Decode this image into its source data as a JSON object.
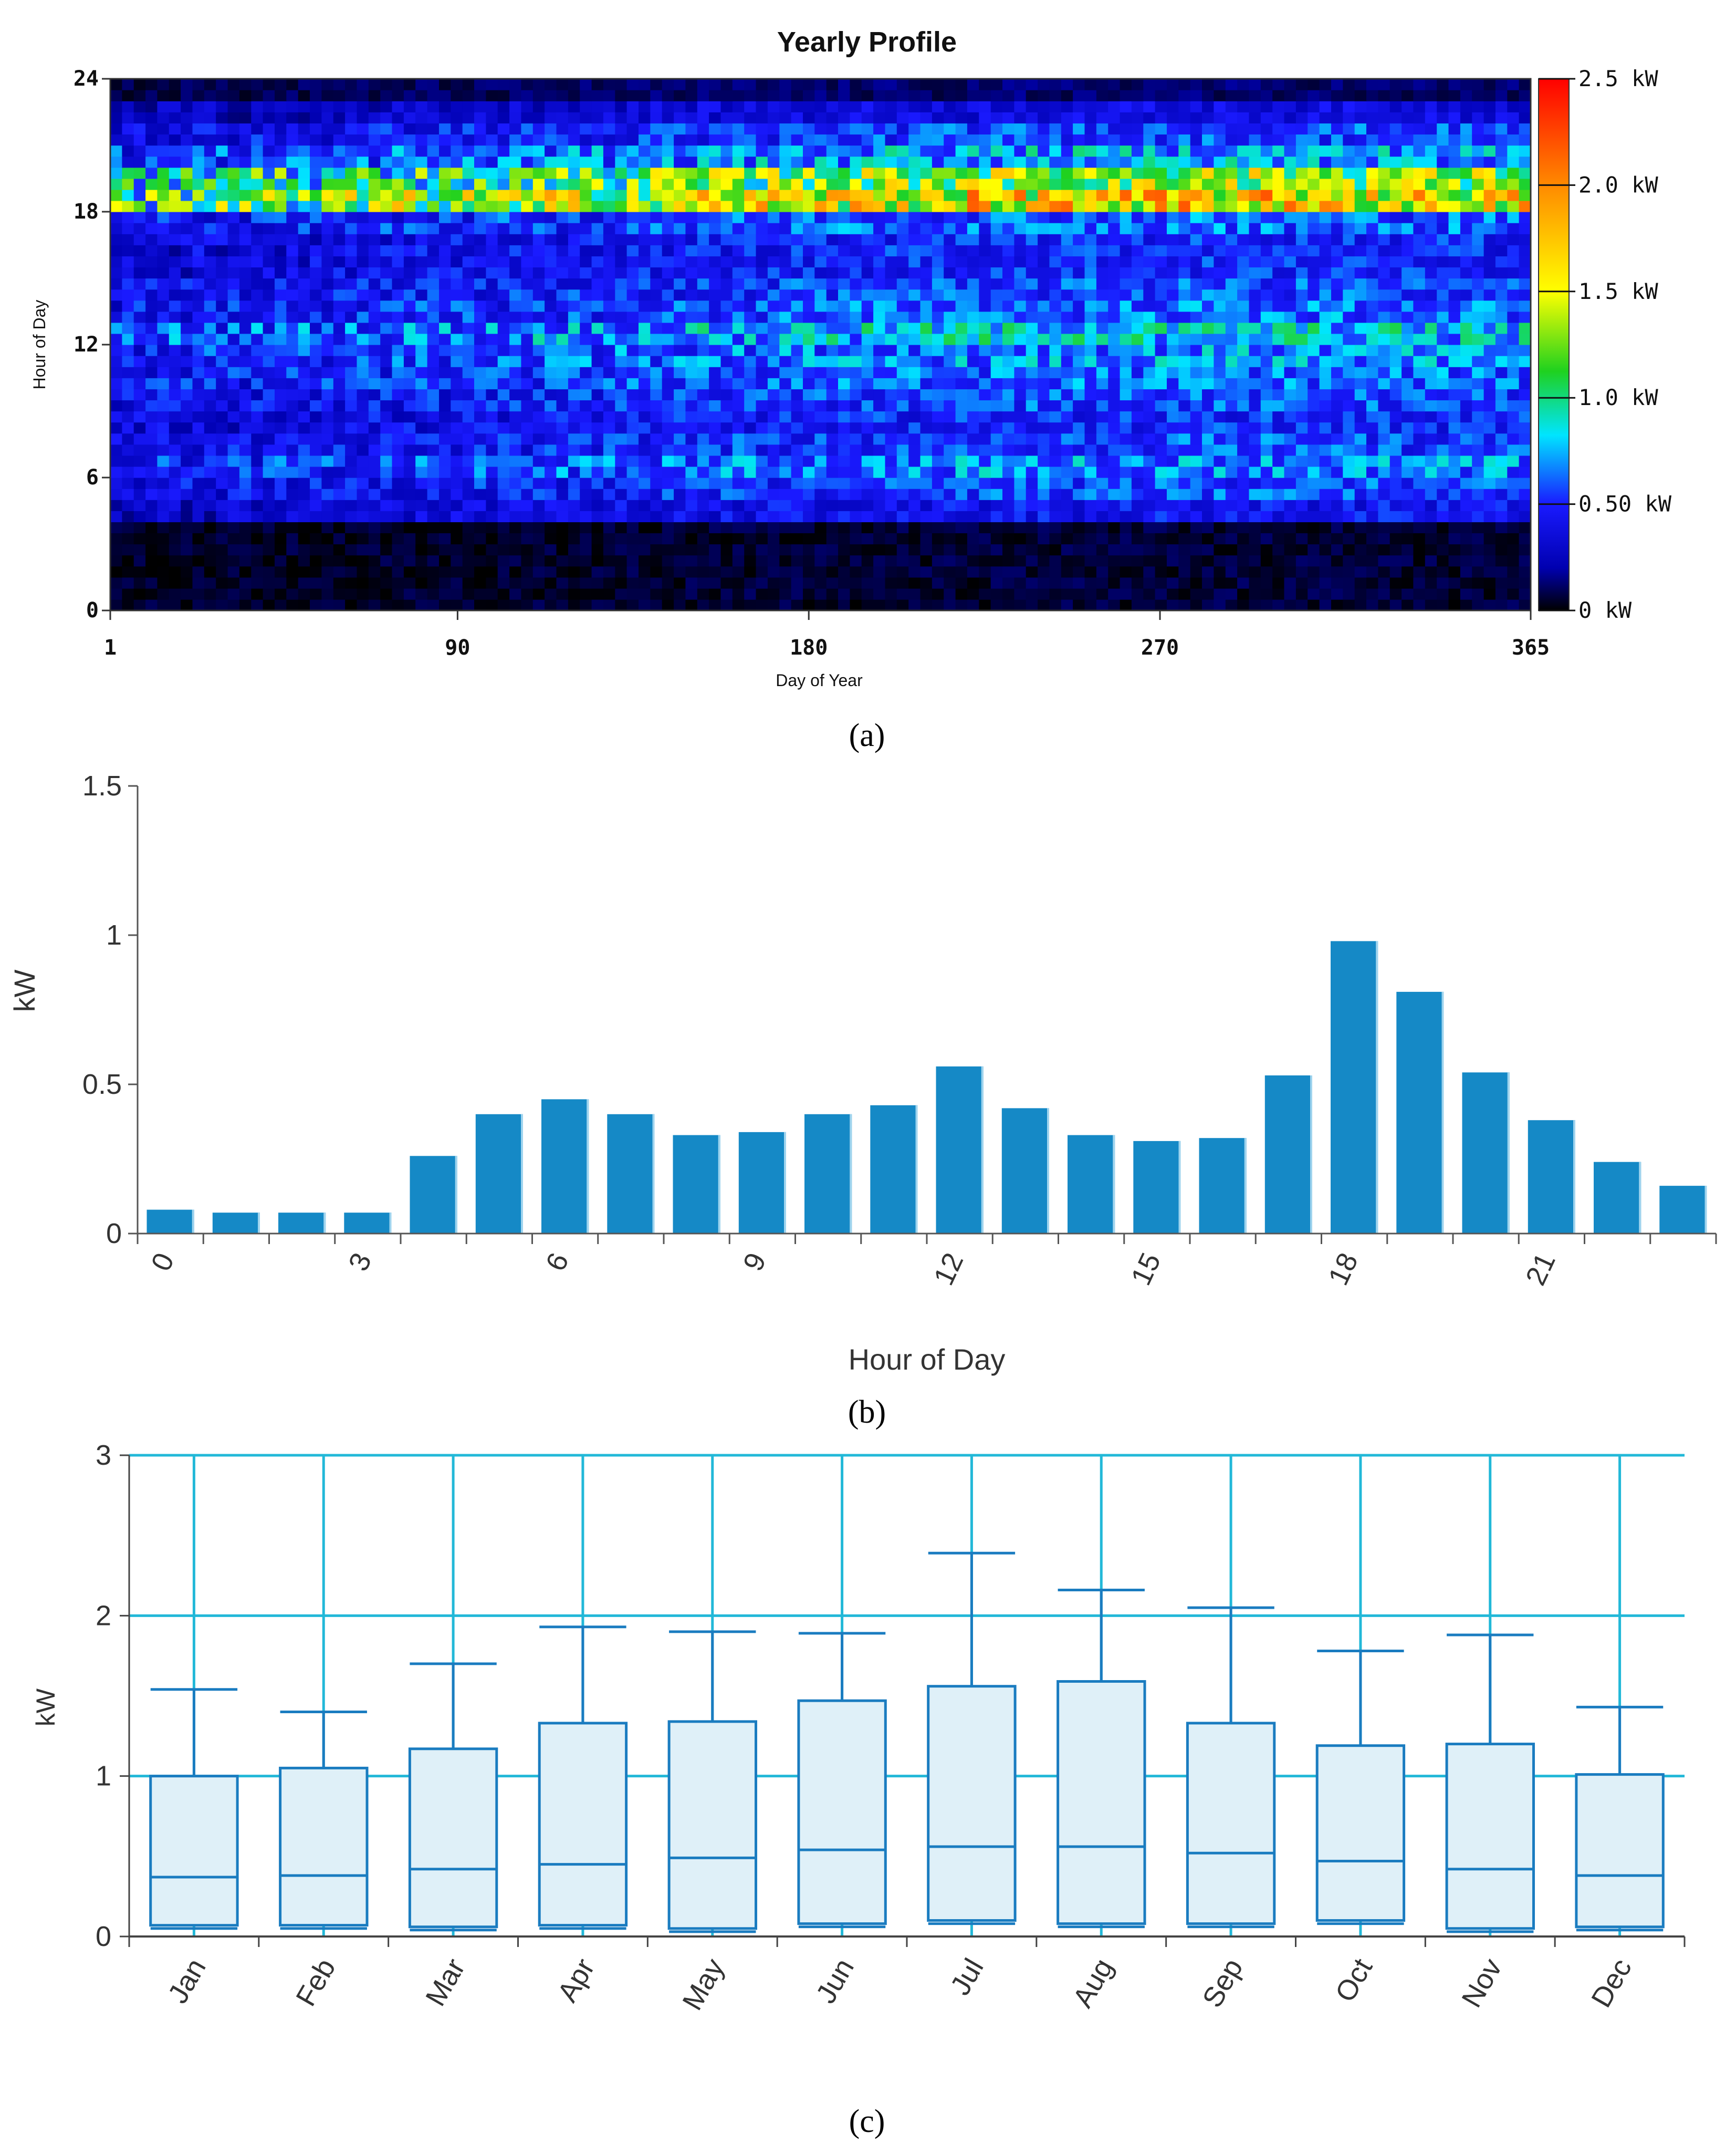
{
  "chart_data": [
    {
      "type": "heatmap",
      "title": "Yearly Profile",
      "xlabel": "Day of Year",
      "ylabel": "Hour of Day",
      "xlim": [
        1,
        365
      ],
      "ylim": [
        0,
        24
      ],
      "x_ticks": [
        "1",
        "90",
        "180",
        "270",
        "365"
      ],
      "y_ticks": [
        "0",
        "6",
        "12",
        "18",
        "24"
      ],
      "colorbar": {
        "range_kw": [
          0,
          2.5
        ],
        "tick_labels": [
          "0 kW",
          "0.50 kW",
          "1.0 kW",
          "1.5 kW",
          "2.0 kW",
          "2.5 kW"
        ],
        "colors": [
          "#000000",
          "#1a1aff",
          "#00e5ff",
          "#1fd11f",
          "#ffff00",
          "#ff8a00",
          "#ff0000"
        ]
      },
      "hourly_level_kw": [
        0.05,
        0.05,
        0.05,
        0.05,
        0.35,
        0.45,
        0.55,
        0.45,
        0.4,
        0.45,
        0.5,
        0.55,
        0.65,
        0.5,
        0.45,
        0.4,
        0.4,
        0.5,
        1.3,
        1.05,
        0.6,
        0.45,
        0.3,
        0.1
      ],
      "caption": "(a)"
    },
    {
      "type": "bar",
      "categories": [
        "0",
        "1",
        "2",
        "3",
        "4",
        "5",
        "6",
        "7",
        "8",
        "9",
        "10",
        "11",
        "12",
        "13",
        "14",
        "15",
        "16",
        "17",
        "18",
        "19",
        "20",
        "21",
        "22",
        "23"
      ],
      "values": [
        0.08,
        0.07,
        0.07,
        0.07,
        0.26,
        0.4,
        0.45,
        0.4,
        0.33,
        0.34,
        0.4,
        0.43,
        0.56,
        0.42,
        0.33,
        0.31,
        0.32,
        0.53,
        0.98,
        0.81,
        0.54,
        0.38,
        0.24,
        0.16
      ],
      "x_tick_labels": [
        "0",
        "3",
        "6",
        "9",
        "12",
        "15",
        "18",
        "21"
      ],
      "y_tick_labels": [
        "0",
        "0.5",
        "1",
        "1.5"
      ],
      "xlabel": "Hour of Day",
      "ylabel": "kW",
      "ylim": [
        0,
        1.5
      ],
      "bar_color": "#1589c6",
      "caption": "(b)"
    },
    {
      "type": "box",
      "categories": [
        "Jan",
        "Feb",
        "Mar",
        "Apr",
        "May",
        "Jun",
        "Jul",
        "Aug",
        "Sep",
        "Oct",
        "Nov",
        "Dec"
      ],
      "boxes": [
        {
          "min": 0.05,
          "q1": 0.07,
          "median": 0.37,
          "q3": 1.0,
          "max": 1.54
        },
        {
          "min": 0.05,
          "q1": 0.07,
          "median": 0.38,
          "q3": 1.05,
          "max": 1.4
        },
        {
          "min": 0.04,
          "q1": 0.06,
          "median": 0.42,
          "q3": 1.17,
          "max": 1.7
        },
        {
          "min": 0.05,
          "q1": 0.07,
          "median": 0.45,
          "q3": 1.33,
          "max": 1.93
        },
        {
          "min": 0.03,
          "q1": 0.05,
          "median": 0.49,
          "q3": 1.34,
          "max": 1.9
        },
        {
          "min": 0.06,
          "q1": 0.08,
          "median": 0.54,
          "q3": 1.47,
          "max": 1.89
        },
        {
          "min": 0.08,
          "q1": 0.1,
          "median": 0.56,
          "q3": 1.56,
          "max": 2.39
        },
        {
          "min": 0.06,
          "q1": 0.08,
          "median": 0.56,
          "q3": 1.59,
          "max": 2.16
        },
        {
          "min": 0.06,
          "q1": 0.08,
          "median": 0.52,
          "q3": 1.33,
          "max": 2.05
        },
        {
          "min": 0.08,
          "q1": 0.1,
          "median": 0.47,
          "q3": 1.19,
          "max": 1.78
        },
        {
          "min": 0.03,
          "q1": 0.05,
          "median": 0.42,
          "q3": 1.2,
          "max": 1.88
        },
        {
          "min": 0.04,
          "q1": 0.06,
          "median": 0.38,
          "q3": 1.01,
          "max": 1.43
        }
      ],
      "y_tick_labels": [
        "0",
        "1",
        "2",
        "3"
      ],
      "xlabel": "",
      "ylabel": "kW",
      "ylim": [
        0,
        3
      ],
      "box_fill": "#dff0f8",
      "box_stroke": "#1a7cc0",
      "grid_color": "#22b8d8",
      "caption": "(c)"
    }
  ]
}
